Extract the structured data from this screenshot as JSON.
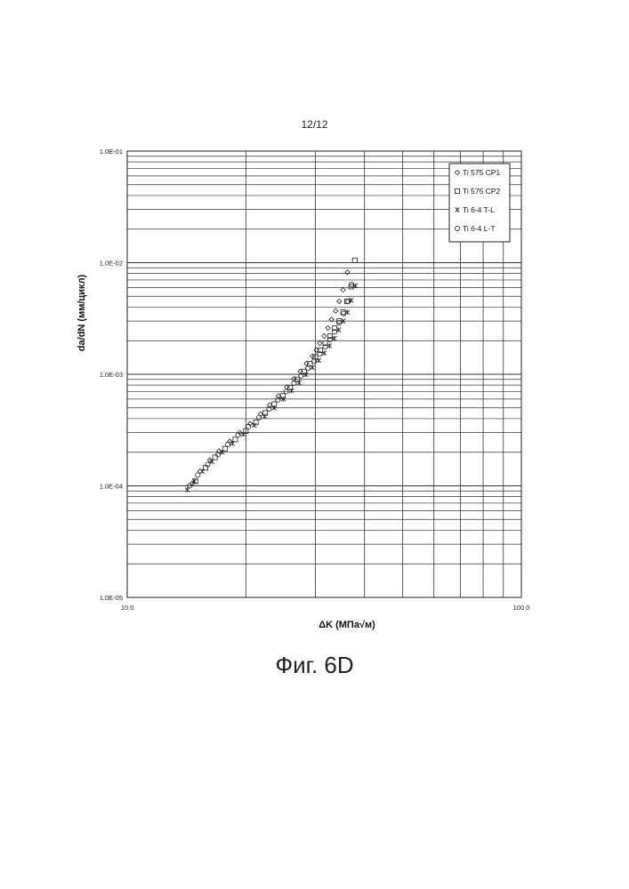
{
  "page_number": "12/12",
  "caption": "Фиг. 6D",
  "chart_data": {
    "type": "scatter",
    "xscale": "log",
    "yscale": "log",
    "xlim": [
      10,
      100
    ],
    "ylim": [
      1e-05,
      0.1
    ],
    "x_tick_labels": [
      "10.0",
      "100.0"
    ],
    "y_tick_labels": [
      "1.0E-05",
      "1.0E-04",
      "1.0E-03",
      "1.0E-02",
      "1.0E-01"
    ],
    "xlabel": "ΔK (МПа√м)",
    "ylabel": "da/dN (мм/цикл)",
    "grid": true,
    "legend_position": "top-right",
    "series": [
      {
        "name": "Ti 575 CP1",
        "marker": "diamond",
        "x": [
          14.6,
          15.3,
          16.2,
          17.1,
          18.2,
          19.3,
          20.5,
          21.8,
          23.0,
          24.2,
          25.4,
          26.5,
          27.5,
          28.5,
          29.5,
          30.2,
          30.8,
          31.6,
          32.3,
          33.0,
          33.8,
          34.5,
          35.3,
          36.2
        ],
        "y": [
          0.000105,
          0.000135,
          0.00017,
          0.000205,
          0.00025,
          0.0003,
          0.00036,
          0.00044,
          0.00053,
          0.00064,
          0.00077,
          0.00091,
          0.00106,
          0.00125,
          0.00145,
          0.00165,
          0.0019,
          0.0022,
          0.0026,
          0.0031,
          0.0037,
          0.0045,
          0.0057,
          0.0082
        ]
      },
      {
        "name": "Ti 575 CP2",
        "marker": "square",
        "x": [
          14.9,
          15.8,
          16.7,
          17.7,
          18.8,
          20.0,
          21.2,
          22.4,
          23.6,
          24.8,
          25.9,
          27.0,
          28.1,
          29.1,
          30.0,
          30.9,
          31.8,
          32.7,
          33.6,
          34.5,
          35.3,
          36.1,
          37.0,
          37.8
        ],
        "y": [
          0.00011,
          0.000145,
          0.00018,
          0.000215,
          0.00026,
          0.00031,
          0.00037,
          0.00045,
          0.00054,
          0.00064,
          0.00076,
          0.0009,
          0.00106,
          0.00124,
          0.00143,
          0.00164,
          0.0019,
          0.0022,
          0.0026,
          0.003,
          0.0036,
          0.0045,
          0.0061,
          0.0105
        ]
      },
      {
        "name": "Ti 6-4 T-L",
        "marker": "asterisk",
        "x": [
          14.2,
          14.8,
          15.5,
          16.4,
          17.4,
          18.5,
          19.7,
          21.0,
          22.3,
          23.6,
          24.9,
          26.1,
          27.3,
          28.4,
          29.5,
          30.6,
          31.6,
          32.6,
          33.5,
          34.4,
          35.3,
          36.2,
          37.0,
          37.9
        ],
        "y": [
          9.2e-05,
          0.00011,
          0.000135,
          0.000165,
          0.0002,
          0.00024,
          0.00029,
          0.00035,
          0.00042,
          0.0005,
          0.0006,
          0.00071,
          0.00084,
          0.00099,
          0.00115,
          0.00133,
          0.00155,
          0.0018,
          0.0021,
          0.0025,
          0.003,
          0.0036,
          0.0046,
          0.0062
        ]
      },
      {
        "name": "Ti 6-4 L-T",
        "marker": "circle",
        "x": [
          14.4,
          15.1,
          16.0,
          17.0,
          18.0,
          19.1,
          20.3,
          21.6,
          22.9,
          24.1,
          25.3,
          26.5,
          27.6,
          28.7,
          29.8,
          30.8,
          31.8,
          32.7,
          33.6,
          34.5,
          35.4,
          36.3,
          37.1
        ],
        "y": [
          0.0001,
          0.000125,
          0.000155,
          0.00019,
          0.000235,
          0.000285,
          0.00034,
          0.00041,
          0.00049,
          0.00059,
          0.0007,
          0.00083,
          0.00097,
          0.00113,
          0.00131,
          0.00152,
          0.00176,
          0.00205,
          0.0024,
          0.0029,
          0.0035,
          0.0045,
          0.0064
        ]
      }
    ]
  }
}
